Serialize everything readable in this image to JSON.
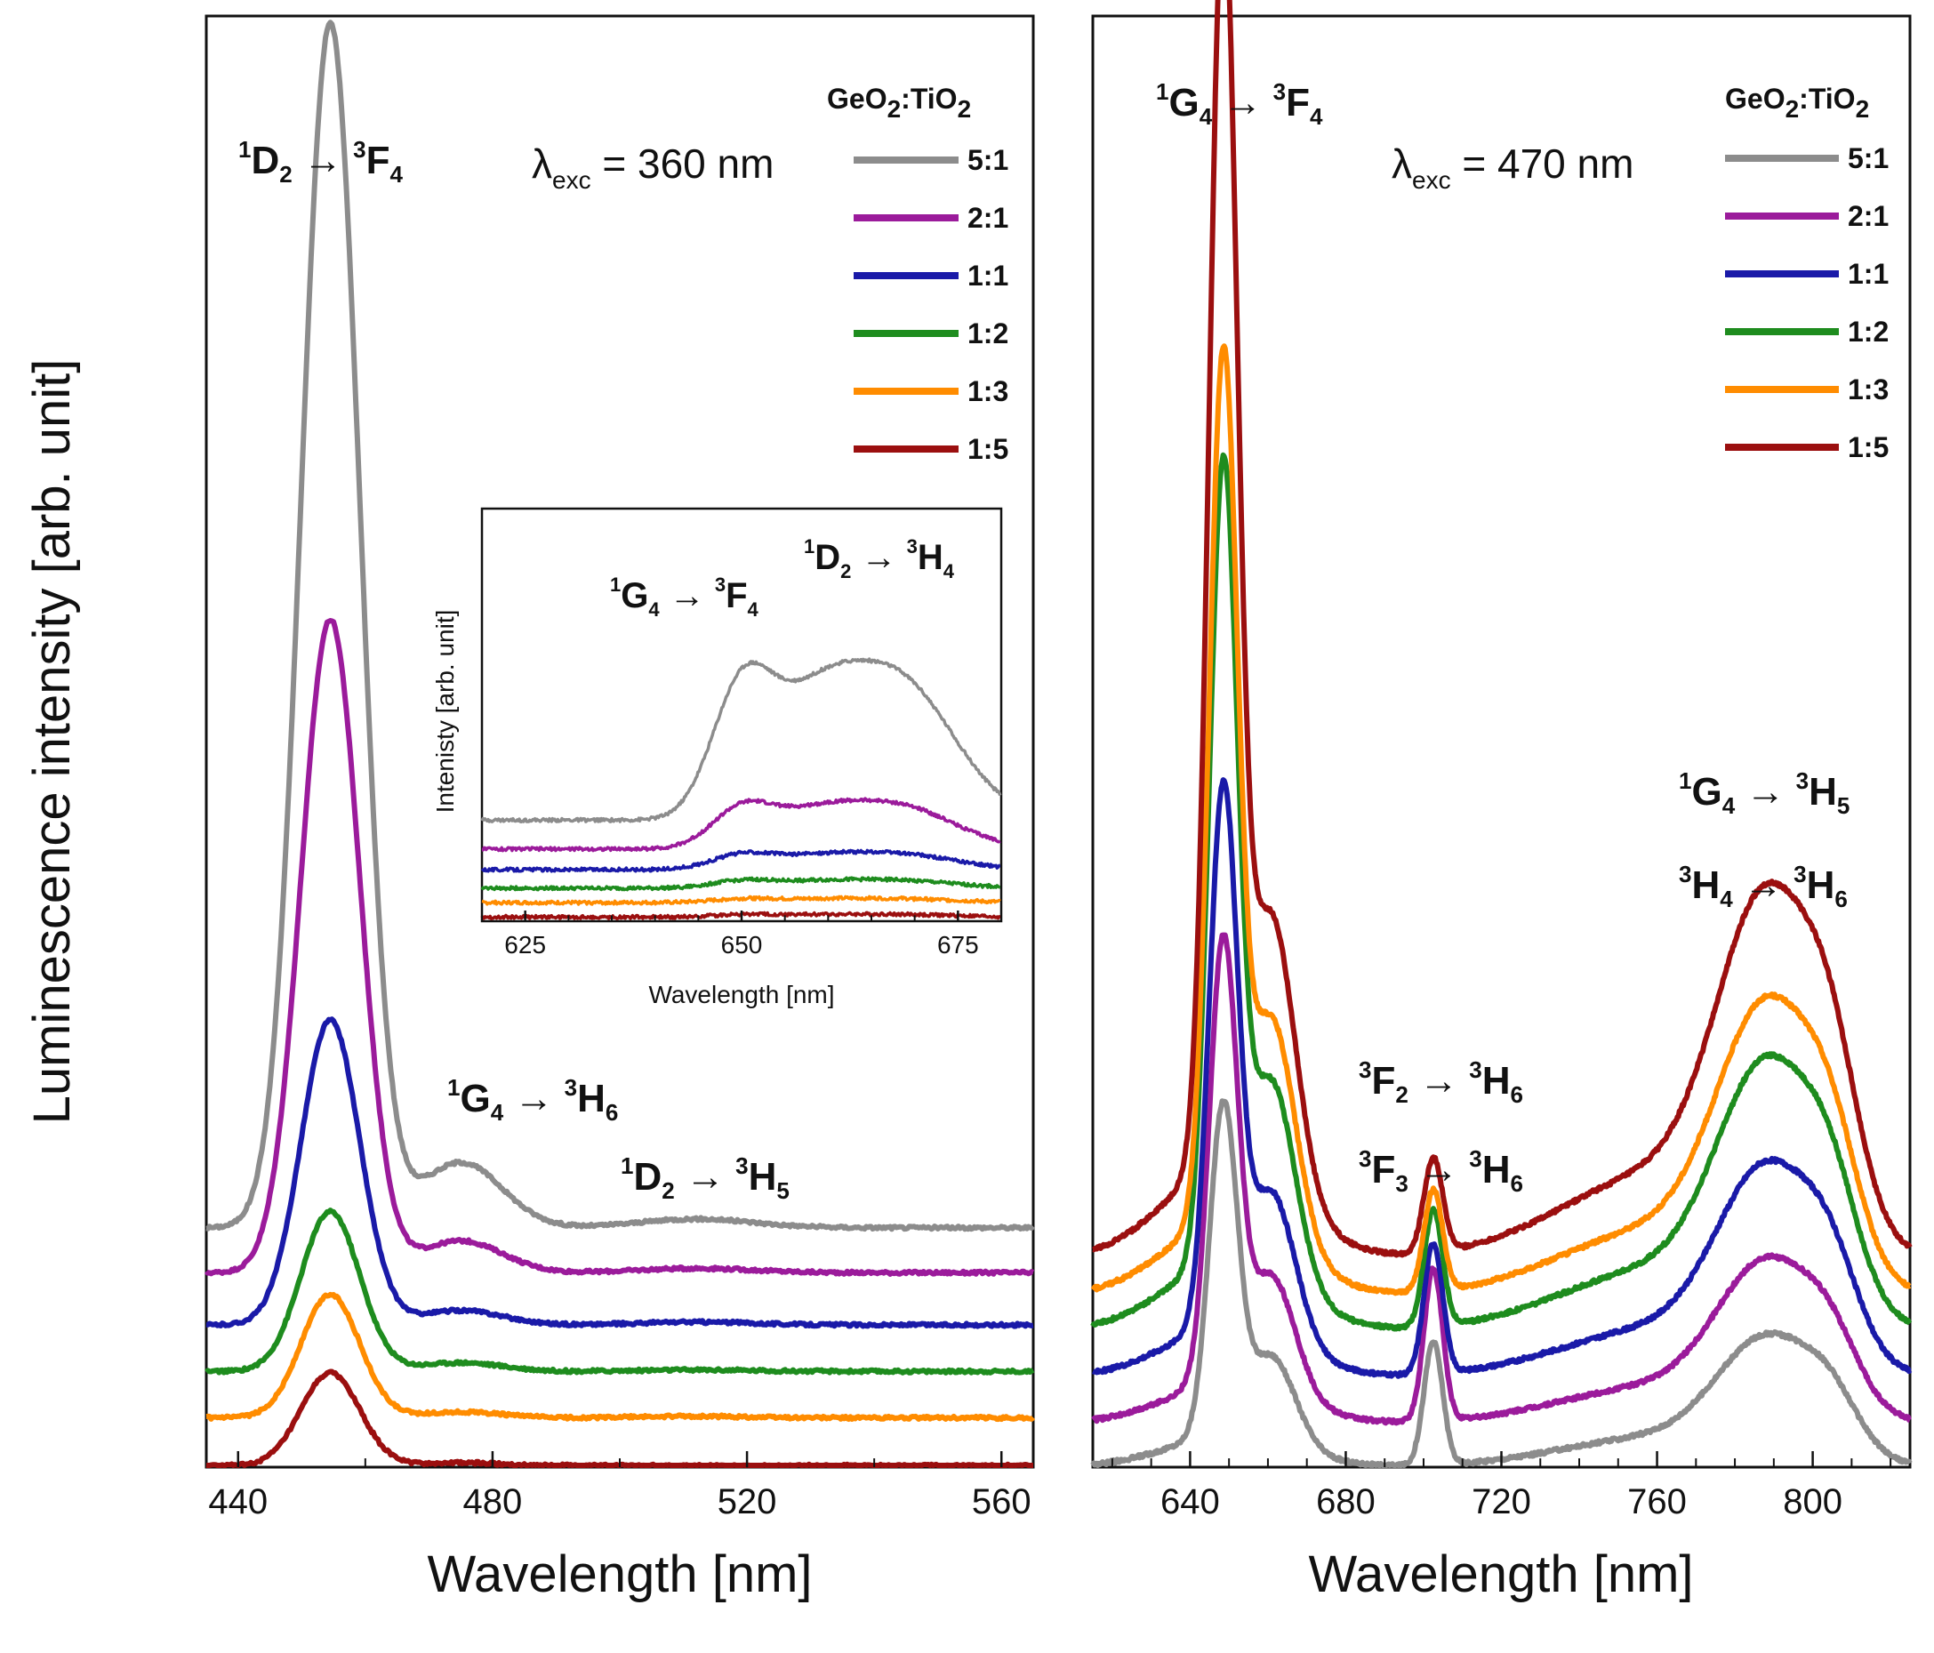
{
  "chart_data": [
    {
      "id": "left",
      "type": "line",
      "xlabel": "Wavelength [nm]",
      "ylabel": "Luminescence intensity [arb. unit]",
      "xlim": [
        435,
        565
      ],
      "ylim": [
        0,
        1
      ],
      "xticks": [
        440,
        480,
        520,
        560
      ],
      "excitation": {
        "lambda": "λ",
        "sub": "exc",
        "text": " = 360 nm"
      },
      "legend": {
        "title_main": "GeO",
        "title_sub": "2",
        "title_mid": ":TiO",
        "title_sub2": "2",
        "placement": "top-right"
      },
      "annotations": [
        {
          "id": "a1",
          "parts": [
            "1",
            "D",
            "2",
            " → ",
            "3",
            "F",
            "4"
          ]
        },
        {
          "id": "a2",
          "parts": [
            "1",
            "G",
            "4",
            " → ",
            "3",
            "H",
            "6"
          ]
        },
        {
          "id": "a3",
          "parts": [
            "1",
            "D",
            "2",
            " → ",
            "3",
            "H",
            "5"
          ]
        }
      ],
      "series": [
        {
          "name": "5:1",
          "color": "#8c8c8c",
          "baseline": 0.165,
          "peak": 0.83,
          "shoulder": 0.045,
          "tail": 0.006
        },
        {
          "name": "2:1",
          "color": "#9b1b9b",
          "baseline": 0.134,
          "peak": 0.45,
          "shoulder": 0.022,
          "tail": 0.003
        },
        {
          "name": "1:1",
          "color": "#1a1aa8",
          "baseline": 0.098,
          "peak": 0.21,
          "shoulder": 0.01,
          "tail": 0.002
        },
        {
          "name": "1:2",
          "color": "#1e8c1e",
          "baseline": 0.066,
          "peak": 0.11,
          "shoulder": 0.006,
          "tail": 0.001
        },
        {
          "name": "1:3",
          "color": "#ff8c00",
          "baseline": 0.034,
          "peak": 0.085,
          "shoulder": 0.004,
          "tail": 0.001
        },
        {
          "name": "1:5",
          "color": "#9b0f0f",
          "baseline": 0.001,
          "peak": 0.064,
          "shoulder": 0.002,
          "tail": 0.0
        }
      ]
    },
    {
      "id": "inset",
      "type": "line",
      "xlabel": "Wavelength [nm]",
      "ylabel": "Intenisty [arb. unit]",
      "xlim": [
        620,
        680
      ],
      "ylim": [
        0,
        1
      ],
      "xticks": [
        625,
        650,
        675
      ],
      "annotations": [
        {
          "id": "i1",
          "parts": [
            "1",
            "G",
            "4",
            " → ",
            "3",
            "F",
            "4"
          ]
        },
        {
          "id": "i2",
          "parts": [
            "1",
            "D",
            "2",
            " → ",
            "3",
            "H",
            "4"
          ]
        }
      ],
      "series": [
        {
          "name": "5:1",
          "color": "#8c8c8c",
          "baseline": 0.245,
          "amp": 0.54
        },
        {
          "name": "2:1",
          "color": "#9b1b9b",
          "baseline": 0.175,
          "amp": 0.165
        },
        {
          "name": "1:1",
          "color": "#1a1aa8",
          "baseline": 0.125,
          "amp": 0.06
        },
        {
          "name": "1:2",
          "color": "#1e8c1e",
          "baseline": 0.08,
          "amp": 0.03
        },
        {
          "name": "1:3",
          "color": "#ff8c00",
          "baseline": 0.045,
          "amp": 0.015
        },
        {
          "name": "1:5",
          "color": "#9b0f0f",
          "baseline": 0.01,
          "amp": 0.01
        }
      ]
    },
    {
      "id": "right",
      "type": "line",
      "xlabel": "Wavelength [nm]",
      "xlim": [
        615,
        825
      ],
      "ylim": [
        0,
        1
      ],
      "xticks": [
        640,
        680,
        720,
        760,
        800
      ],
      "excitation": {
        "lambda": "λ",
        "sub": "exc",
        "text": " = 470 nm"
      },
      "legend": {
        "title_main": "GeO",
        "title_sub": "2",
        "title_mid": ":TiO",
        "title_sub2": "2",
        "placement": "top-right"
      },
      "annotations": [
        {
          "id": "r1",
          "parts": [
            "1",
            "G",
            "4",
            " → ",
            "3",
            "F",
            "4"
          ]
        },
        {
          "id": "r2",
          "parts": [
            "3",
            "F",
            "2",
            " → ",
            "3",
            "H",
            "6"
          ]
        },
        {
          "id": "r3",
          "parts": [
            "3",
            "F",
            "3",
            " → ",
            "3",
            "H",
            "6"
          ]
        },
        {
          "id": "r4",
          "parts": [
            "1",
            "G",
            "4",
            " → ",
            "3",
            "H",
            "5"
          ]
        },
        {
          "id": "r5",
          "parts": [
            "3",
            "H",
            "4",
            " → ",
            "3",
            "H",
            "6"
          ]
        }
      ],
      "series": [
        {
          "name": "5:1",
          "color": "#8c8c8c",
          "baseline": 0.0,
          "p648": 0.225,
          "p662": 0.06,
          "p703": 0.085,
          "p790": 0.08,
          "p805": 0.025
        },
        {
          "name": "2:1",
          "color": "#9b1b9b",
          "baseline": 0.03,
          "p648": 0.3,
          "p662": 0.08,
          "p703": 0.105,
          "p790": 0.1,
          "p805": 0.03
        },
        {
          "name": "1:1",
          "color": "#1a1aa8",
          "baseline": 0.062,
          "p648": 0.365,
          "p662": 0.1,
          "p703": 0.09,
          "p790": 0.13,
          "p805": 0.04
        },
        {
          "name": "1:2",
          "color": "#1e8c1e",
          "baseline": 0.094,
          "p648": 0.54,
          "p662": 0.135,
          "p703": 0.08,
          "p790": 0.165,
          "p805": 0.05
        },
        {
          "name": "1:3",
          "color": "#ff8c00",
          "baseline": 0.118,
          "p648": 0.585,
          "p662": 0.15,
          "p703": 0.07,
          "p790": 0.18,
          "p805": 0.055
        },
        {
          "name": "1:5",
          "color": "#9b0f0f",
          "baseline": 0.144,
          "p648": 0.85,
          "p662": 0.185,
          "p703": 0.065,
          "p790": 0.225,
          "p805": 0.07
        }
      ]
    }
  ]
}
